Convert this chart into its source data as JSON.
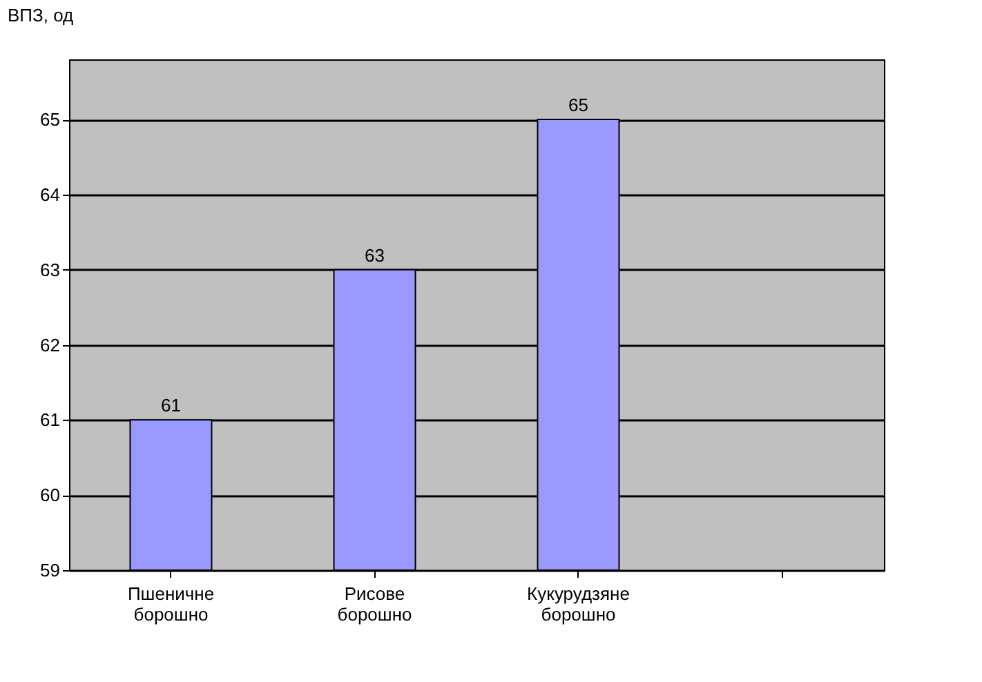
{
  "chart_data": {
    "type": "bar",
    "ylabel": "ВПЗ, од",
    "categories": [
      "Пшеничне борошно",
      "Рисове борошно",
      "Кукурудзяне борошно",
      null
    ],
    "values": [
      61,
      63,
      65,
      null
    ],
    "color": "#9999ff",
    "ylim": [
      59,
      65.8
    ],
    "yticks": [
      59,
      60,
      61,
      62,
      63,
      64,
      65
    ],
    "grid": "y",
    "data_labels": true
  }
}
